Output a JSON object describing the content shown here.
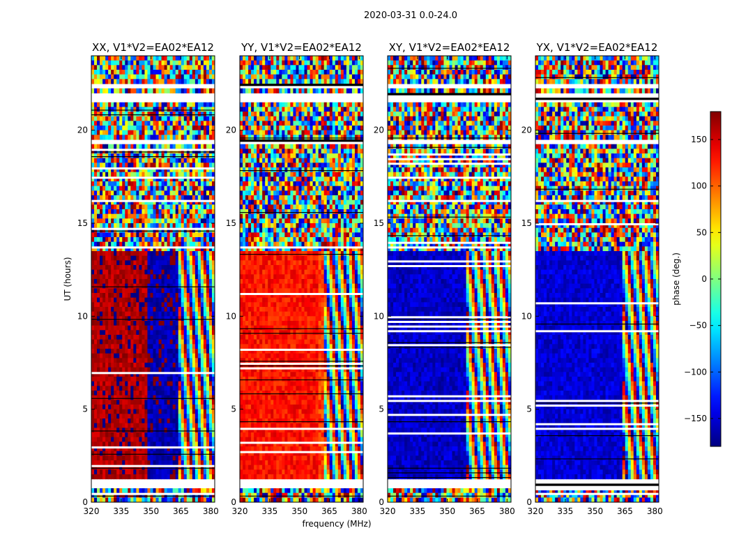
{
  "figure_title": "2020-03-31 0.0-24.0",
  "chart_data": {
    "type": "heatmap",
    "description_units": {
      "x": "frequency (MHz)",
      "y": "UT (hours)",
      "color": "phase (deg.)"
    },
    "xlim": [
      320,
      382
    ],
    "ylim": [
      0,
      24
    ],
    "xticks": [
      320,
      335,
      350,
      365,
      380
    ],
    "yticks": [
      0,
      5,
      10,
      15,
      20
    ],
    "xlabel": "frequency (MHz)",
    "ylabel": "UT (hours)",
    "colorbar": {
      "label": "phase (deg.)",
      "range": [
        -180,
        180
      ],
      "ticks": [
        150,
        100,
        50,
        0,
        -50,
        -100,
        -150
      ],
      "tick_labels": [
        "150",
        "100",
        "50",
        "0",
        "−50",
        "−100",
        "−150"
      ],
      "colormap": "jet"
    },
    "panels": [
      {
        "title": "XX, V1*V2=EA02*EA12",
        "baseline_phase_lo": 165,
        "baseline_phase_hi": -165,
        "split_freq": 348,
        "noise_freq": 363
      },
      {
        "title": "YY, V1*V2=EA02*EA12",
        "baseline_phase_lo": 130,
        "baseline_phase_hi": 115,
        "split_freq": 360,
        "noise_freq": 362
      },
      {
        "title": "XY, V1*V2=EA02*EA12",
        "baseline_phase_lo": -155,
        "baseline_phase_hi": -140,
        "split_freq": 359,
        "noise_freq": 360
      },
      {
        "title": "YX, V1*V2=EA02*EA12",
        "baseline_phase_lo": -150,
        "baseline_phase_hi": -135,
        "split_freq": 364,
        "noise_freq": 364
      }
    ],
    "flagged_ut_ranges": [
      [
        0.8,
        1.2
      ],
      [
        19.3,
        19.55
      ],
      [
        21.55,
        21.9
      ],
      [
        22.35,
        22.5
      ]
    ],
    "coherent_ut_ranges": [
      [
        1.2,
        13.4
      ]
    ]
  }
}
